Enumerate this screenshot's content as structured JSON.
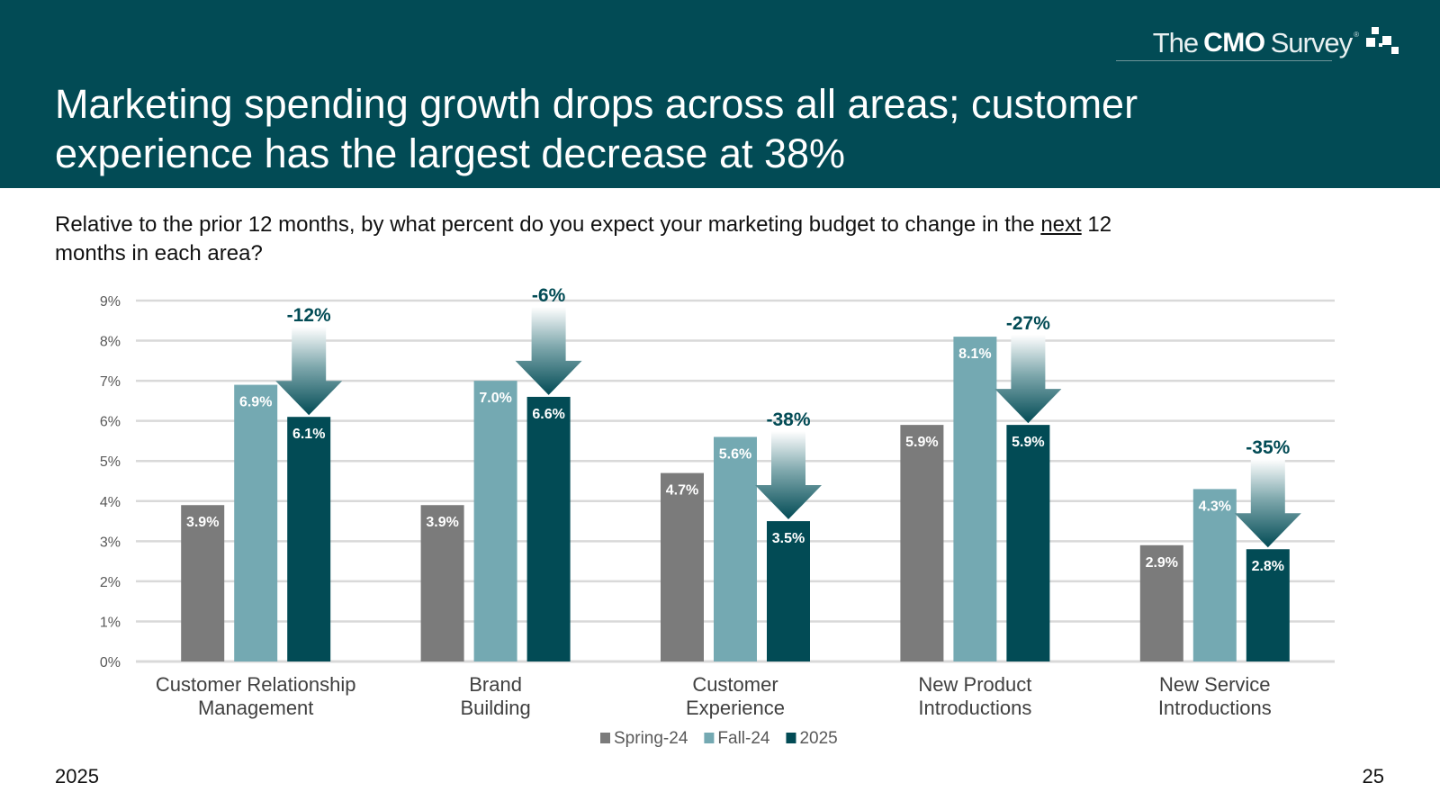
{
  "header": {
    "logo": {
      "the": "The",
      "cmo": "CMO",
      "survey": "Survey",
      "reg": "®"
    },
    "title": "Marketing spending growth drops across all areas; customer experience has the largest decrease at 38%"
  },
  "question": {
    "before": "Relative to the prior 12 months, by what percent do you expect your marketing budget to change in the ",
    "underlined": "next",
    "after": " 12 months in each area?"
  },
  "footer": {
    "year": "2025",
    "page": "25"
  },
  "colors": {
    "header_bg": "#024b55",
    "spring": "#7b7b7b",
    "fall": "#74a9b2",
    "y2025": "#024b55",
    "grid": "#d9d9d9",
    "change_label": "#024b55"
  },
  "chart_data": {
    "type": "bar",
    "title": "",
    "xlabel": "",
    "ylabel": "",
    "ylim": [
      0,
      9
    ],
    "yticks": [
      "0%",
      "1%",
      "2%",
      "3%",
      "4%",
      "5%",
      "6%",
      "7%",
      "8%",
      "9%"
    ],
    "grid": true,
    "legend_position": "bottom",
    "categories": [
      [
        "Customer Relationship",
        "Management"
      ],
      [
        "Brand",
        "Building"
      ],
      [
        "Customer",
        "Experience"
      ],
      [
        "New Product",
        "Introductions"
      ],
      [
        "New Service",
        "Introductions"
      ]
    ],
    "series": [
      {
        "name": "Spring-24",
        "color": "#7b7b7b",
        "values": [
          3.9,
          3.9,
          4.7,
          5.9,
          2.9
        ],
        "labels": [
          "3.9%",
          "3.9%",
          "4.7%",
          "5.9%",
          "2.9%"
        ]
      },
      {
        "name": "Fall-24",
        "color": "#74a9b2",
        "values": [
          6.9,
          7.0,
          5.6,
          8.1,
          4.3
        ],
        "labels": [
          "6.9%",
          "7.0%",
          "5.6%",
          "8.1%",
          "4.3%"
        ]
      },
      {
        "name": "2025",
        "color": "#024b55",
        "values": [
          6.1,
          6.6,
          3.5,
          5.9,
          2.8
        ],
        "labels": [
          "6.1%",
          "6.6%",
          "3.5%",
          "5.9%",
          "2.8%"
        ]
      }
    ],
    "annotations": {
      "type": "down-arrow",
      "labels": [
        "-12%",
        "-6%",
        "-38%",
        "-27%",
        "-35%"
      ]
    }
  }
}
